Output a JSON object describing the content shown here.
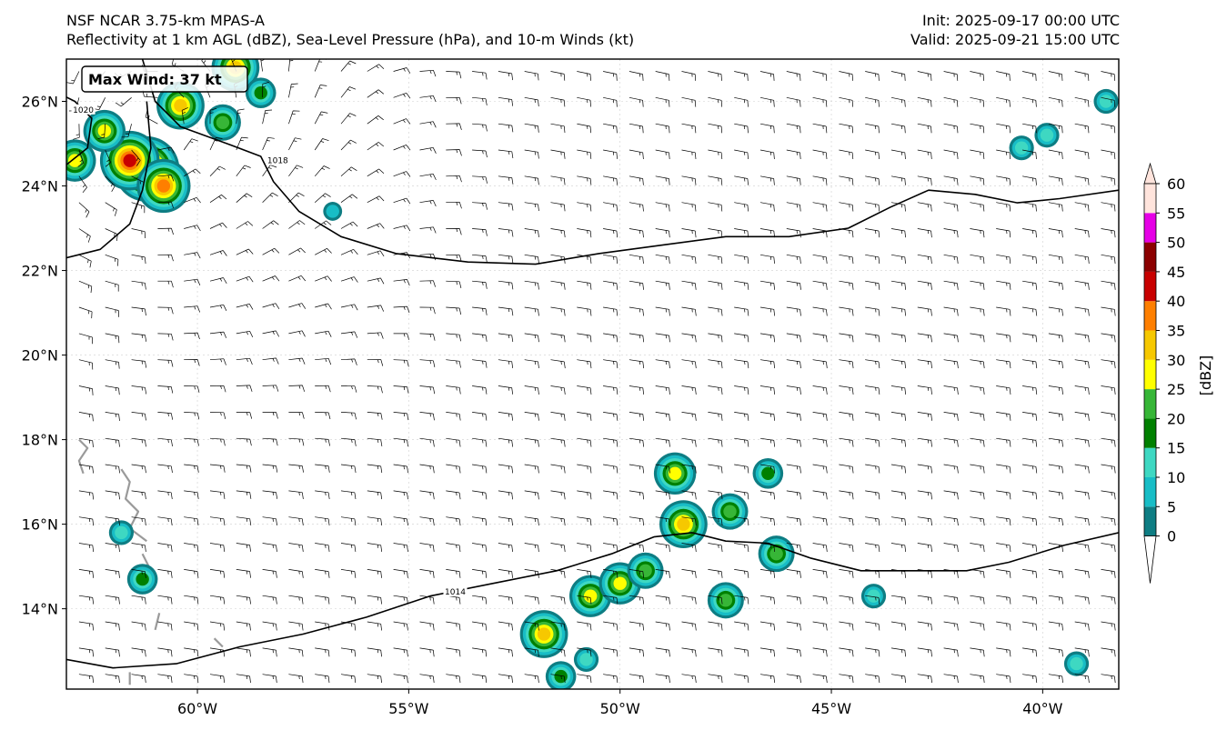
{
  "header": {
    "model_title": "NSF NCAR 3.75-km MPAS-A",
    "fields_title": "Reflectivity at 1 km AGL (dBZ), Sea-Level Pressure (hPa), and 10-m Winds (kt)",
    "init_time": "Init: 2025-09-17 00:00 UTC",
    "valid_time": "Valid: 2025-09-21 15:00 UTC"
  },
  "map": {
    "lon_range": [
      -63.1,
      -38.2
    ],
    "lat_range": [
      12.1,
      27.0
    ],
    "lat_ticks": [
      {
        "value": 26,
        "label": "26°N"
      },
      {
        "value": 24,
        "label": "24°N"
      },
      {
        "value": 22,
        "label": "22°N"
      },
      {
        "value": 20,
        "label": "20°N"
      },
      {
        "value": 18,
        "label": "18°N"
      },
      {
        "value": 16,
        "label": "16°N"
      },
      {
        "value": 14,
        "label": "14°N"
      }
    ],
    "lon_ticks": [
      {
        "value": -60,
        "label": "60°W"
      },
      {
        "value": -55,
        "label": "55°W"
      },
      {
        "value": -50,
        "label": "50°W"
      },
      {
        "value": -45,
        "label": "45°W"
      },
      {
        "value": -40,
        "label": "40°W"
      }
    ],
    "max_wind_label": "Max Wind: 37 kt",
    "isobars": [
      {
        "label": "1018",
        "label_at": [
          -58.1,
          24.6
        ],
        "points": [
          [
            -61.3,
            27.0
          ],
          [
            -61.0,
            26.0
          ],
          [
            -60.4,
            25.4
          ],
          [
            -59.3,
            25.0
          ],
          [
            -58.5,
            24.7
          ],
          [
            -58.2,
            24.1
          ],
          [
            -57.6,
            23.4
          ],
          [
            -56.6,
            22.8
          ],
          [
            -55.3,
            22.4
          ],
          [
            -53.6,
            22.2
          ],
          [
            -52.0,
            22.15
          ],
          [
            -50.5,
            22.4
          ],
          [
            -49.0,
            22.6
          ],
          [
            -47.5,
            22.8
          ],
          [
            -46.0,
            22.8
          ],
          [
            -44.6,
            23.0
          ],
          [
            -43.6,
            23.5
          ],
          [
            -42.7,
            23.9
          ],
          [
            -41.6,
            23.8
          ],
          [
            -40.6,
            23.6
          ],
          [
            -39.6,
            23.7
          ],
          [
            -38.2,
            23.9
          ]
        ]
      },
      {
        "label": "1014",
        "label_at": [
          -53.9,
          14.4
        ],
        "points": [
          [
            -63.1,
            12.8
          ],
          [
            -62.0,
            12.6
          ],
          [
            -60.5,
            12.7
          ],
          [
            -59.0,
            13.1
          ],
          [
            -57.5,
            13.4
          ],
          [
            -56.0,
            13.8
          ],
          [
            -54.5,
            14.3
          ],
          [
            -53.0,
            14.6
          ],
          [
            -51.5,
            14.9
          ],
          [
            -50.2,
            15.3
          ],
          [
            -49.2,
            15.7
          ],
          [
            -48.3,
            15.8
          ],
          [
            -47.5,
            15.6
          ],
          [
            -46.5,
            15.55
          ],
          [
            -45.5,
            15.2
          ],
          [
            -44.3,
            14.9
          ],
          [
            -43.0,
            14.9
          ],
          [
            -41.8,
            14.9
          ],
          [
            -40.8,
            15.1
          ],
          [
            -39.5,
            15.5
          ],
          [
            -38.2,
            15.8
          ]
        ]
      },
      {
        "label": "",
        "label_at": null,
        "points": [
          [
            -63.1,
            22.3
          ],
          [
            -62.3,
            22.5
          ],
          [
            -61.6,
            23.1
          ],
          [
            -61.3,
            23.9
          ],
          [
            -61.1,
            24.9
          ],
          [
            -61.2,
            26.0
          ]
        ]
      },
      {
        "label": "1020",
        "label_at": [
          -62.7,
          25.8
        ],
        "points": [
          [
            -63.1,
            24.5
          ],
          [
            -62.6,
            24.9
          ],
          [
            -62.5,
            25.6
          ],
          [
            -62.9,
            26.0
          ],
          [
            -63.1,
            26.1
          ]
        ]
      }
    ],
    "coastlines": [
      [
        [
          -62.8,
          18.0
        ],
        [
          -62.6,
          17.8
        ],
        [
          -62.8,
          17.5
        ],
        [
          -62.7,
          17.2
        ]
      ],
      [
        [
          -61.8,
          17.3
        ],
        [
          -61.6,
          17.0
        ],
        [
          -61.7,
          16.6
        ],
        [
          -61.4,
          16.3
        ],
        [
          -61.6,
          15.9
        ],
        [
          -61.2,
          15.6
        ]
      ],
      [
        [
          -61.3,
          15.3
        ],
        [
          -61.1,
          14.9
        ],
        [
          -61.2,
          14.5
        ]
      ],
      [
        [
          -60.9,
          13.9
        ],
        [
          -61.0,
          13.5
        ]
      ],
      [
        [
          -61.6,
          12.5
        ],
        [
          -61.6,
          12.2
        ]
      ],
      [
        [
          -59.6,
          13.3
        ],
        [
          -59.4,
          13.1
        ]
      ]
    ],
    "reflectivity_cells": [
      {
        "lon": -61.2,
        "lat": 24.4,
        "dbz": 48
      },
      {
        "lon": -61.6,
        "lat": 24.6,
        "dbz": 42
      },
      {
        "lon": -60.8,
        "lat": 24.0,
        "dbz": 35
      },
      {
        "lon": -62.2,
        "lat": 25.3,
        "dbz": 25
      },
      {
        "lon": -60.4,
        "lat": 25.9,
        "dbz": 30
      },
      {
        "lon": -59.1,
        "lat": 26.8,
        "dbz": 32
      },
      {
        "lon": -59.4,
        "lat": 25.5,
        "dbz": 22
      },
      {
        "lon": -62.9,
        "lat": 24.6,
        "dbz": 28
      },
      {
        "lon": -58.5,
        "lat": 26.2,
        "dbz": 18
      },
      {
        "lon": -51.4,
        "lat": 12.4,
        "dbz": 18
      },
      {
        "lon": -50.8,
        "lat": 12.8,
        "dbz": 12
      },
      {
        "lon": -51.8,
        "lat": 13.4,
        "dbz": 30
      },
      {
        "lon": -50.7,
        "lat": 14.3,
        "dbz": 28
      },
      {
        "lon": -50.0,
        "lat": 14.6,
        "dbz": 26
      },
      {
        "lon": -49.4,
        "lat": 14.9,
        "dbz": 22
      },
      {
        "lon": -48.5,
        "lat": 16.0,
        "dbz": 32
      },
      {
        "lon": -47.4,
        "lat": 16.3,
        "dbz": 24
      },
      {
        "lon": -47.5,
        "lat": 14.2,
        "dbz": 20
      },
      {
        "lon": -48.7,
        "lat": 17.2,
        "dbz": 26
      },
      {
        "lon": -46.5,
        "lat": 17.2,
        "dbz": 18
      },
      {
        "lon": -46.3,
        "lat": 15.3,
        "dbz": 20
      },
      {
        "lon": -40.5,
        "lat": 24.9,
        "dbz": 14
      },
      {
        "lon": -39.9,
        "lat": 25.2,
        "dbz": 12
      },
      {
        "lon": -44.0,
        "lat": 14.3,
        "dbz": 14
      },
      {
        "lon": -61.3,
        "lat": 14.7,
        "dbz": 18
      },
      {
        "lon": -61.8,
        "lat": 15.8,
        "dbz": 10
      },
      {
        "lon": -39.2,
        "lat": 12.7,
        "dbz": 10
      },
      {
        "lon": -38.5,
        "lat": 26.0,
        "dbz": 12
      },
      {
        "lon": -56.8,
        "lat": 23.4,
        "dbz": 8
      }
    ]
  },
  "colorbar": {
    "label": "[dBZ]",
    "levels": [
      0,
      5,
      10,
      15,
      20,
      25,
      30,
      35,
      40,
      45,
      50,
      55,
      60
    ],
    "tick_labels": [
      "0",
      "5",
      "10",
      "15",
      "20",
      "25",
      "30",
      "35",
      "40",
      "45",
      "50",
      "55",
      "60"
    ],
    "colors": [
      "#0e7d83",
      "#18bdc6",
      "#3ed8c2",
      "#008000",
      "#37b637",
      "#ffff00",
      "#f6c800",
      "#fe7f00",
      "#c80000",
      "#8b0000",
      "#e600e6",
      "#ffe4dc"
    ]
  }
}
